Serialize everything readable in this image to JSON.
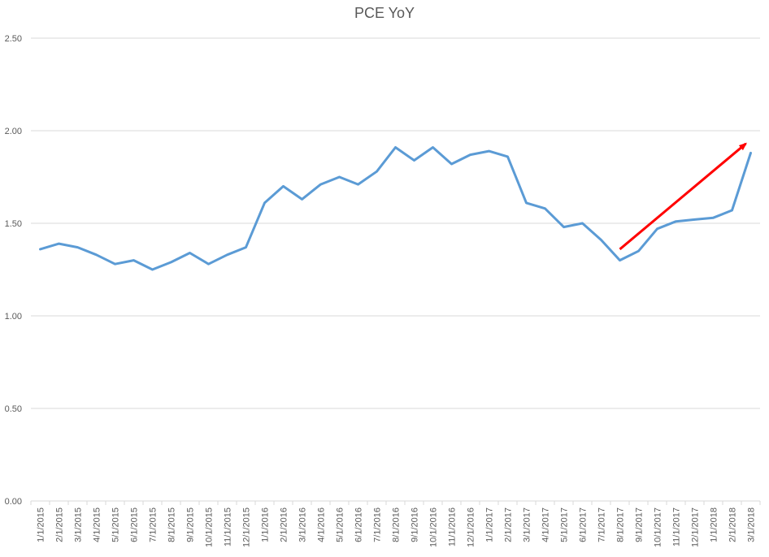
{
  "chart_data": {
    "type": "line",
    "title": "PCE YoY",
    "xlabel": "",
    "ylabel": "",
    "ylim": [
      0,
      2.5
    ],
    "yticks": [
      "0.00",
      "0.50",
      "1.00",
      "1.50",
      "2.00",
      "2.50"
    ],
    "grid": true,
    "categories": [
      "1/1/2015",
      "2/1/2015",
      "3/1/2015",
      "4/1/2015",
      "5/1/2015",
      "6/1/2015",
      "7/1/2015",
      "8/1/2015",
      "9/1/2015",
      "10/1/2015",
      "11/1/2015",
      "12/1/2015",
      "1/1/2016",
      "2/1/2016",
      "3/1/2016",
      "4/1/2016",
      "5/1/2016",
      "6/1/2016",
      "7/1/2016",
      "8/1/2016",
      "9/1/2016",
      "10/1/2016",
      "11/1/2016",
      "12/1/2016",
      "1/1/2017",
      "2/1/2017",
      "3/1/2017",
      "4/1/2017",
      "5/1/2017",
      "6/1/2017",
      "7/1/2017",
      "8/1/2017",
      "9/1/2017",
      "10/1/2017",
      "11/1/2017",
      "12/1/2017",
      "1/1/2018",
      "2/1/2018",
      "3/1/2018"
    ],
    "series": [
      {
        "values": [
          1.36,
          1.39,
          1.37,
          1.33,
          1.28,
          1.3,
          1.25,
          1.29,
          1.34,
          1.28,
          1.33,
          1.37,
          1.61,
          1.7,
          1.63,
          1.71,
          1.75,
          1.71,
          1.78,
          1.91,
          1.84,
          1.91,
          1.82,
          1.87,
          1.89,
          1.86,
          1.61,
          1.58,
          1.48,
          1.5,
          1.41,
          1.3,
          1.35,
          1.47,
          1.51,
          1.52,
          1.53,
          1.57,
          1.88
        ],
        "color": "#5b9bd5"
      }
    ],
    "annotations": [
      {
        "type": "arrow",
        "color": "#ff0000",
        "from": {
          "x": "8/1/2017",
          "y": 1.36
        },
        "to": {
          "x": "3/1/2018",
          "y": 1.93
        }
      }
    ]
  }
}
